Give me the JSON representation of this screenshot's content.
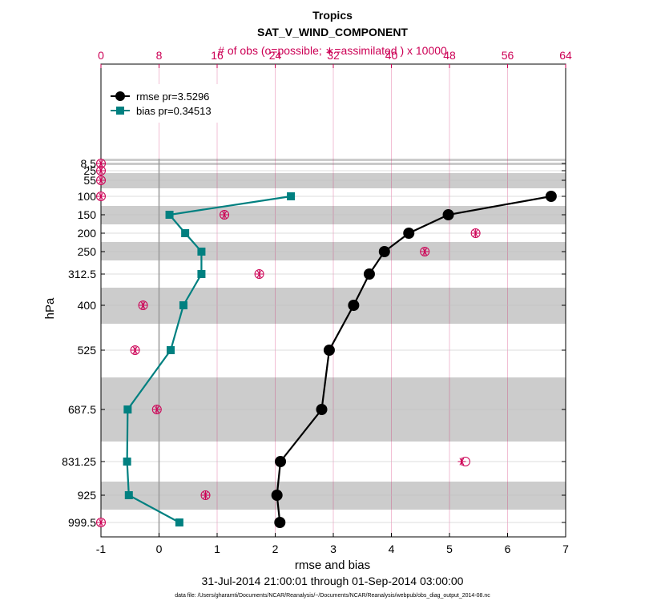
{
  "chart_data": {
    "type": "line",
    "title": "Tropics",
    "subtitle": "SAT_V_WIND_COMPONENT",
    "xlabel": "rmse and bias",
    "ylabel": "hPa",
    "top_xlabel": "# of obs (o=possible; ∗=assimilated ) x 10000",
    "footer": "31-Jul-2014 21:00:01 through 01-Sep-2014 03:00:00",
    "datafile": "data file: /Users/gharamti/Documents/NCAR/Reanalysis/~/Documents/NCAR/Reanalysis/webpub/obs_diag_output_2014-08.nc",
    "xlim": [
      -1,
      7
    ],
    "top_xlim": [
      0,
      64
    ],
    "x_ticks": [
      "-1",
      "0",
      "1",
      "2",
      "3",
      "4",
      "5",
      "6",
      "7"
    ],
    "top_ticks": [
      "0",
      "8",
      "16",
      "24",
      "32",
      "40",
      "48",
      "56",
      "64"
    ],
    "levels": [
      8.5,
      25,
      55,
      100,
      150,
      200,
      250,
      312.5,
      400,
      525,
      687.5,
      831.25,
      925,
      999.5
    ],
    "level_labels": [
      "8.5",
      "25",
      "55",
      "100",
      "150",
      "200",
      "250",
      "312.5",
      "400",
      "525",
      "687.5",
      "831.25",
      "925",
      "999.5"
    ],
    "series": [
      {
        "name": "rmse pr=3.5296",
        "color": "#000000",
        "levels": [
          100,
          150,
          200,
          250,
          312.5,
          400,
          525,
          687.5,
          831.25,
          925,
          999.5
        ],
        "values": [
          6.75,
          4.98,
          4.3,
          3.88,
          3.62,
          3.35,
          2.93,
          2.8,
          2.09,
          2.03,
          2.08
        ]
      },
      {
        "name": "bias pr=0.34513",
        "color": "#008080",
        "levels": [
          100,
          150,
          200,
          250,
          312.5,
          400,
          525,
          687.5,
          831.25,
          925,
          999.5
        ],
        "values": [
          2.27,
          0.18,
          0.45,
          0.73,
          0.73,
          0.42,
          0.2,
          -0.54,
          -0.55,
          -0.52,
          0.35
        ]
      }
    ],
    "obs_counts": {
      "color": "#cc0055",
      "levels": [
        8.5,
        25,
        55,
        100,
        150,
        200,
        250,
        312.5,
        400,
        525,
        687.5,
        831.25,
        925,
        999.5
      ],
      "possible": [
        0,
        0,
        0,
        0,
        17.0,
        51.6,
        44.6,
        21.8,
        5.8,
        4.7,
        7.7,
        50.2,
        14.4,
        0
      ],
      "assimilated": [
        0,
        0,
        0,
        0,
        17.0,
        51.6,
        44.6,
        21.8,
        5.8,
        4.7,
        7.7,
        49.7,
        14.4,
        0
      ]
    },
    "grid": true,
    "legend_position": "top-left"
  }
}
